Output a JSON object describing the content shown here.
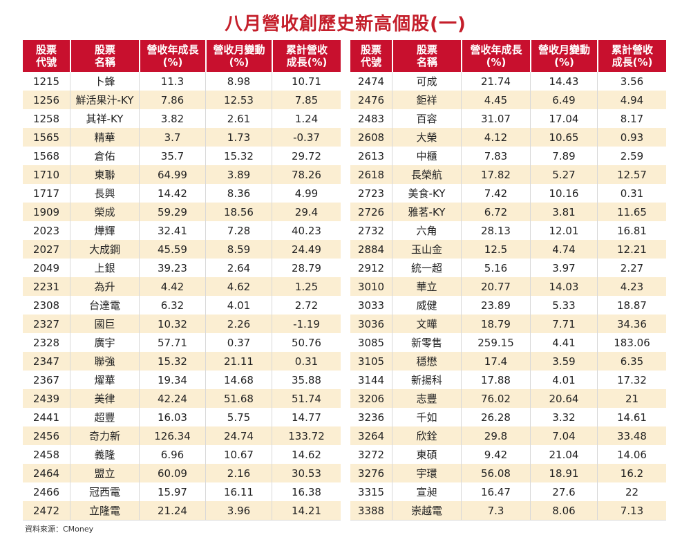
{
  "title": "八月營收創歷史新高個股(一)",
  "source": "資料來源：CMoney",
  "colors": {
    "header_bg": "#c8102e",
    "title": "#c41e2a",
    "stripe": "#fbeed2"
  },
  "headers": [
    [
      "股票",
      "代號"
    ],
    [
      "股票",
      "名稱"
    ],
    [
      "營收年成長",
      "(%)"
    ],
    [
      "營收月變動",
      "(%)"
    ],
    [
      "累計營收",
      "成長(%)"
    ]
  ],
  "left_rows": [
    [
      "1215",
      "卜蜂",
      "11.3",
      "8.98",
      "10.71"
    ],
    [
      "1256",
      "鮮活果汁-KY",
      "7.86",
      "12.53",
      "7.85"
    ],
    [
      "1258",
      "其祥-KY",
      "3.82",
      "2.61",
      "1.24"
    ],
    [
      "1565",
      "精華",
      "3.7",
      "1.73",
      "-0.37"
    ],
    [
      "1568",
      "倉佑",
      "35.7",
      "15.32",
      "29.72"
    ],
    [
      "1710",
      "東聯",
      "64.99",
      "3.89",
      "78.26"
    ],
    [
      "1717",
      "長興",
      "14.42",
      "8.36",
      "4.99"
    ],
    [
      "1909",
      "榮成",
      "59.29",
      "18.56",
      "29.4"
    ],
    [
      "2023",
      "燁輝",
      "32.41",
      "7.28",
      "40.23"
    ],
    [
      "2027",
      "大成鋼",
      "45.59",
      "8.59",
      "24.49"
    ],
    [
      "2049",
      "上銀",
      "39.23",
      "2.64",
      "28.79"
    ],
    [
      "2231",
      "為升",
      "4.42",
      "4.62",
      "1.25"
    ],
    [
      "2308",
      "台達電",
      "6.32",
      "4.01",
      "2.72"
    ],
    [
      "2327",
      "國巨",
      "10.32",
      "2.26",
      "-1.19"
    ],
    [
      "2328",
      "廣宇",
      "57.71",
      "0.37",
      "50.76"
    ],
    [
      "2347",
      "聯強",
      "15.32",
      "21.11",
      "0.31"
    ],
    [
      "2367",
      "燿華",
      "19.34",
      "14.68",
      "35.88"
    ],
    [
      "2439",
      "美律",
      "42.24",
      "51.68",
      "51.74"
    ],
    [
      "2441",
      "超豐",
      "16.03",
      "5.75",
      "14.77"
    ],
    [
      "2456",
      "奇力新",
      "126.34",
      "24.74",
      "133.72"
    ],
    [
      "2458",
      "義隆",
      "6.96",
      "10.67",
      "14.62"
    ],
    [
      "2464",
      "盟立",
      "60.09",
      "2.16",
      "30.53"
    ],
    [
      "2466",
      "冠西電",
      "15.97",
      "16.11",
      "16.38"
    ],
    [
      "2472",
      "立隆電",
      "21.24",
      "3.96",
      "14.21"
    ]
  ],
  "right_rows": [
    [
      "2474",
      "可成",
      "21.74",
      "14.43",
      "3.56"
    ],
    [
      "2476",
      "鉅祥",
      "4.45",
      "6.49",
      "4.94"
    ],
    [
      "2483",
      "百容",
      "31.07",
      "17.04",
      "8.17"
    ],
    [
      "2608",
      "大榮",
      "4.12",
      "10.65",
      "0.93"
    ],
    [
      "2613",
      "中櫃",
      "7.83",
      "7.89",
      "2.59"
    ],
    [
      "2618",
      "長榮航",
      "17.82",
      "5.27",
      "12.57"
    ],
    [
      "2723",
      "美食-KY",
      "7.42",
      "10.16",
      "0.31"
    ],
    [
      "2726",
      "雅茗-KY",
      "6.72",
      "3.81",
      "11.65"
    ],
    [
      "2732",
      "六角",
      "28.13",
      "12.01",
      "16.81"
    ],
    [
      "2884",
      "玉山金",
      "12.5",
      "4.74",
      "12.21"
    ],
    [
      "2912",
      "統一超",
      "5.16",
      "3.97",
      "2.27"
    ],
    [
      "3010",
      "華立",
      "20.77",
      "14.03",
      "4.23"
    ],
    [
      "3033",
      "威健",
      "23.89",
      "5.33",
      "18.87"
    ],
    [
      "3036",
      "文曄",
      "18.79",
      "7.71",
      "34.36"
    ],
    [
      "3085",
      "新零售",
      "259.15",
      "4.41",
      "183.06"
    ],
    [
      "3105",
      "穩懋",
      "17.4",
      "3.59",
      "6.35"
    ],
    [
      "3144",
      "新揚科",
      "17.88",
      "4.01",
      "17.32"
    ],
    [
      "3206",
      "志豐",
      "76.02",
      "20.64",
      "21"
    ],
    [
      "3236",
      "千如",
      "26.28",
      "3.32",
      "14.61"
    ],
    [
      "3264",
      "欣銓",
      "29.8",
      "7.04",
      "33.48"
    ],
    [
      "3272",
      "東碩",
      "9.42",
      "21.04",
      "14.06"
    ],
    [
      "3276",
      "宇環",
      "56.08",
      "18.91",
      "16.2"
    ],
    [
      "3315",
      "宣昶",
      "16.47",
      "27.6",
      "22"
    ],
    [
      "3388",
      "崇越電",
      "7.3",
      "8.06",
      "7.13"
    ]
  ]
}
